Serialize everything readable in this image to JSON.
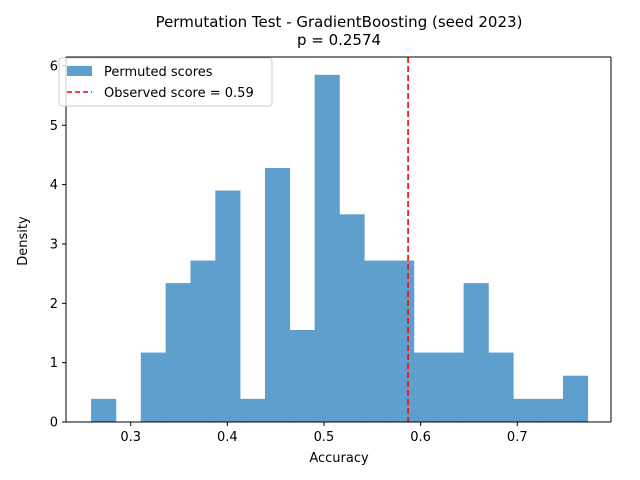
{
  "chart_data": {
    "type": "bar",
    "title": "Permutation Test - GradientBoosting (seed 2023)",
    "subtitle": "p = 0.2574",
    "xlabel": "Accuracy",
    "ylabel": "Density",
    "xlim": [
      0.233,
      0.797
    ],
    "ylim": [
      0,
      6.15
    ],
    "xticks": [
      0.3,
      0.4,
      0.5,
      0.6,
      0.7
    ],
    "xtick_labels": [
      "0.3",
      "0.4",
      "0.5",
      "0.6",
      "0.7"
    ],
    "yticks": [
      0,
      1,
      2,
      3,
      4,
      5,
      6
    ],
    "ytick_labels": [
      "0",
      "1",
      "2",
      "3",
      "4",
      "5",
      "6"
    ],
    "bin_start": 0.259,
    "bin_width": 0.0257,
    "densities": [
      0.39,
      0,
      1.17,
      2.34,
      2.72,
      3.9,
      0.39,
      4.28,
      1.55,
      5.85,
      3.5,
      2.72,
      2.72,
      1.17,
      1.17,
      2.34,
      1.17,
      0.39,
      0.39,
      0.78
    ],
    "observed_score": 0.587,
    "legend_position": "top-left",
    "series": [
      {
        "name": "Permuted scores",
        "color": "#5f9fcd"
      },
      {
        "name": "Observed score = 0.59",
        "color": "#ff0000",
        "style": "dashed"
      }
    ]
  }
}
